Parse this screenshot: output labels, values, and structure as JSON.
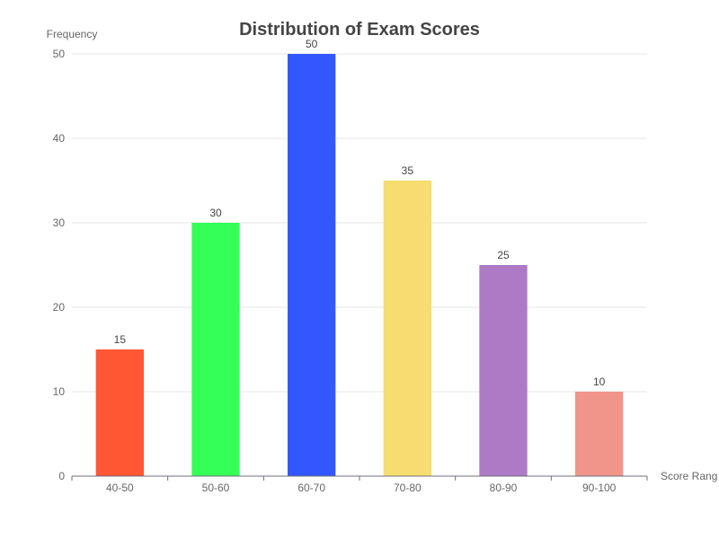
{
  "chart_data": {
    "type": "bar",
    "title": "Distribution of Exam Scores",
    "xlabel": "Score Rang",
    "ylabel": "Frequency",
    "categories": [
      "40-50",
      "50-60",
      "60-70",
      "70-80",
      "80-90",
      "90-100"
    ],
    "values": [
      15,
      30,
      50,
      35,
      25,
      10
    ],
    "colors": [
      "#ff5733",
      "#33ff57",
      "#3357ff",
      "#f7dc6f",
      "#af7ac5",
      "#f1948a"
    ],
    "ylim": [
      0,
      50
    ],
    "yticks": [
      0,
      10,
      20,
      30,
      40,
      50
    ],
    "grid": true,
    "data_labels": true
  }
}
